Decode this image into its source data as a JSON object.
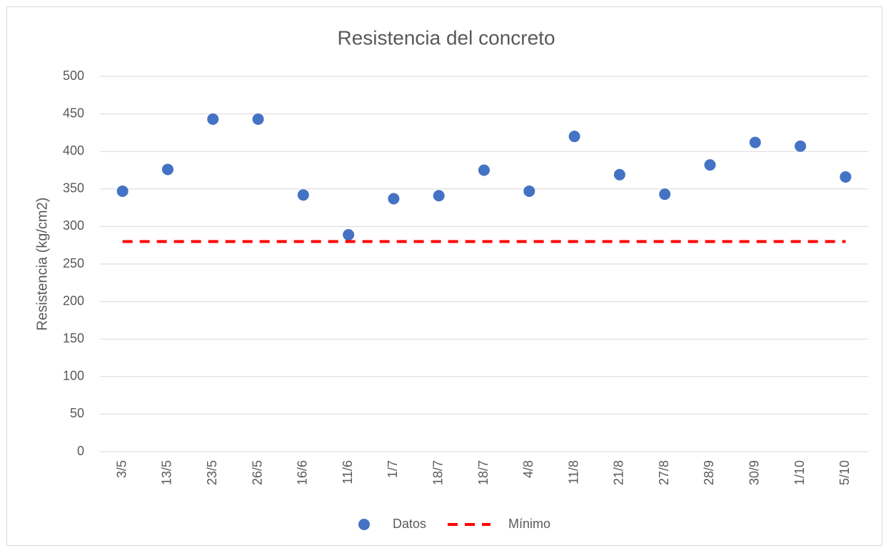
{
  "chart_data": {
    "type": "line",
    "title": "Resistencia del concreto",
    "y_label": "Resistencia (kg/cm2)",
    "categories": [
      "3/5",
      "13/5",
      "23/5",
      "26/5",
      "16/6",
      "11/6",
      "1/7",
      "18/7",
      "18/7",
      "4/8",
      "11/8",
      "21/8",
      "27/8",
      "28/9",
      "30/9",
      "1/10",
      "5/10"
    ],
    "series": [
      {
        "name": "Datos",
        "color": "#4472c4",
        "style": "markers",
        "values": [
          347,
          376,
          443,
          443,
          342,
          289,
          337,
          341,
          375,
          347,
          420,
          369,
          343,
          382,
          412,
          407,
          366
        ]
      },
      {
        "name": "Mínimo",
        "color": "#ff0000",
        "style": "dashed",
        "values": [
          280,
          280,
          280,
          280,
          280,
          280,
          280,
          280,
          280,
          280,
          280,
          280,
          280,
          280,
          280,
          280,
          280
        ]
      }
    ],
    "ylim": [
      0,
      500
    ],
    "yticks": [
      0,
      50,
      100,
      150,
      200,
      250,
      300,
      350,
      400,
      450,
      500
    ],
    "grid": true,
    "legend": "bottom"
  }
}
